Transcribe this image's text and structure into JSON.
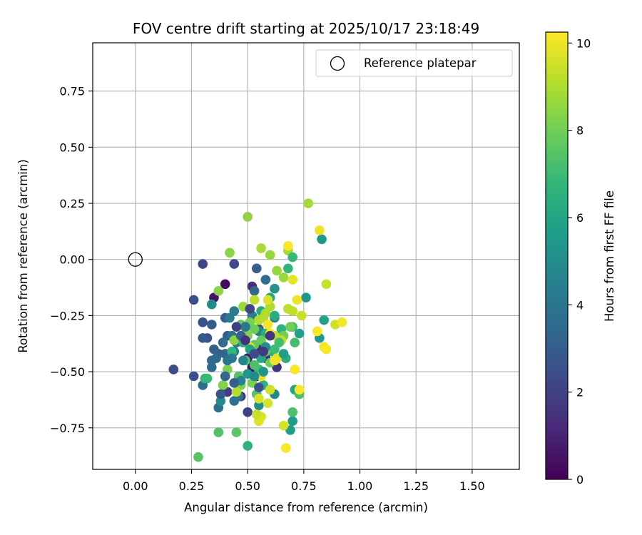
{
  "chart_data": {
    "type": "scatter",
    "title": "FOV centre drift starting at 2025/10/17 23:18:49",
    "xlabel": "Angular distance from reference (arcmin)",
    "ylabel": "Rotation from reference (arcmin)",
    "xlim": [
      -0.19,
      1.71
    ],
    "ylim": [
      -0.935,
      0.965
    ],
    "xticks": [
      "0.00",
      "0.25",
      "0.50",
      "0.75",
      "1.00",
      "1.25",
      "1.50"
    ],
    "xtick_values": [
      0,
      0.25,
      0.5,
      0.75,
      1.0,
      1.25,
      1.5
    ],
    "yticks": [
      "−0.75",
      "−0.50",
      "−0.25",
      "0.00",
      "0.25",
      "0.50",
      "0.75"
    ],
    "ytick_values": [
      -0.75,
      -0.5,
      -0.25,
      0,
      0.25,
      0.5,
      0.75
    ],
    "grid": true,
    "legend": {
      "label": "Reference platepar",
      "location": "upper right"
    },
    "reference": {
      "x": 0.0,
      "y": 0.0
    },
    "colorbar": {
      "label": "Hours from first FF file",
      "range": [
        0,
        10.25
      ],
      "ticks": [
        "0",
        "2",
        "4",
        "6",
        "8",
        "10"
      ],
      "tick_values": [
        0,
        2,
        4,
        6,
        8,
        10
      ],
      "colormap": "viridis",
      "stops": [
        "#440154",
        "#482878",
        "#3e4989",
        "#31688e",
        "#26828e",
        "#1f9e89",
        "#35b779",
        "#6ece58",
        "#b5de2b",
        "#fde725"
      ]
    },
    "series": [
      {
        "name": "FOV centre drift",
        "points": [
          [
            0.4,
            -0.11,
            0.3
          ],
          [
            0.35,
            -0.17,
            0.5
          ],
          [
            0.52,
            -0.48,
            0.4
          ],
          [
            0.54,
            -0.52,
            0.6
          ],
          [
            0.5,
            -0.44,
            0.8
          ],
          [
            0.55,
            -0.4,
            1.0
          ],
          [
            0.58,
            -0.44,
            1.2
          ],
          [
            0.52,
            -0.12,
            1.3
          ],
          [
            0.63,
            -0.48,
            1.5
          ],
          [
            0.47,
            -0.61,
            1.6
          ],
          [
            0.41,
            -0.59,
            1.8
          ],
          [
            0.5,
            -0.68,
            2.0
          ],
          [
            0.55,
            -0.31,
            2.1
          ],
          [
            0.3,
            -0.02,
            2.2
          ],
          [
            0.44,
            -0.02,
            2.3
          ],
          [
            0.17,
            -0.49,
            2.4
          ],
          [
            0.26,
            -0.52,
            2.5
          ],
          [
            0.26,
            -0.18,
            2.5
          ],
          [
            0.3,
            -0.28,
            2.6
          ],
          [
            0.32,
            -0.35,
            2.7
          ],
          [
            0.3,
            -0.35,
            2.8
          ],
          [
            0.34,
            -0.29,
            2.9
          ],
          [
            0.4,
            -0.26,
            3.0
          ],
          [
            0.41,
            -0.34,
            3.0
          ],
          [
            0.35,
            -0.4,
            3.1
          ],
          [
            0.37,
            -0.42,
            3.2
          ],
          [
            0.4,
            -0.42,
            3.3
          ],
          [
            0.34,
            -0.45,
            3.4
          ],
          [
            0.34,
            -0.48,
            3.5
          ],
          [
            0.36,
            -0.44,
            3.5
          ],
          [
            0.3,
            -0.56,
            3.6
          ],
          [
            0.37,
            -0.66,
            3.7
          ],
          [
            0.44,
            -0.63,
            3.8
          ],
          [
            0.46,
            -0.61,
            3.9
          ],
          [
            0.54,
            -0.04,
            3.0
          ],
          [
            0.53,
            -0.14,
            3.4
          ],
          [
            0.58,
            -0.09,
            3.7
          ],
          [
            0.43,
            -0.34,
            3.8
          ],
          [
            0.45,
            -0.37,
            4.0
          ],
          [
            0.44,
            -0.41,
            4.1
          ],
          [
            0.42,
            -0.26,
            4.2
          ],
          [
            0.44,
            -0.23,
            4.3
          ],
          [
            0.52,
            -0.25,
            4.4
          ],
          [
            0.55,
            -0.32,
            4.6
          ],
          [
            0.62,
            -0.26,
            4.7
          ],
          [
            0.62,
            -0.6,
            4.8
          ],
          [
            0.34,
            -0.2,
            4.9
          ],
          [
            0.38,
            -0.63,
            5.0
          ],
          [
            0.55,
            -0.65,
            5.1
          ],
          [
            0.62,
            -0.13,
            5.2
          ],
          [
            0.76,
            -0.17,
            5.3
          ],
          [
            0.83,
            0.09,
            5.4
          ],
          [
            0.82,
            -0.35,
            5.5
          ],
          [
            0.7,
            -0.72,
            5.6
          ],
          [
            0.69,
            -0.76,
            5.7
          ],
          [
            0.73,
            -0.33,
            5.8
          ],
          [
            0.84,
            -0.27,
            5.9
          ],
          [
            0.71,
            -0.58,
            6.0
          ],
          [
            0.6,
            -0.17,
            6.1
          ],
          [
            0.56,
            -0.23,
            6.2
          ],
          [
            0.58,
            -0.33,
            6.3
          ],
          [
            0.61,
            -0.41,
            6.4
          ],
          [
            0.67,
            -0.44,
            6.4
          ],
          [
            0.65,
            -0.31,
            6.5
          ],
          [
            0.57,
            -0.56,
            6.6
          ],
          [
            0.5,
            -0.83,
            6.6
          ],
          [
            0.43,
            -0.41,
            6.7
          ],
          [
            0.31,
            -0.53,
            6.8
          ],
          [
            0.32,
            -0.53,
            6.9
          ],
          [
            0.55,
            -0.49,
            7.0
          ],
          [
            0.62,
            -0.4,
            7.0
          ],
          [
            0.7,
            -0.3,
            7.1
          ],
          [
            0.71,
            -0.37,
            7.2
          ],
          [
            0.73,
            -0.6,
            7.2
          ],
          [
            0.7,
            -0.68,
            7.3
          ],
          [
            0.54,
            -0.6,
            7.4
          ],
          [
            0.37,
            -0.77,
            7.4
          ],
          [
            0.28,
            -0.88,
            7.5
          ],
          [
            0.45,
            -0.77,
            7.6
          ],
          [
            0.49,
            -0.45,
            7.6
          ],
          [
            0.53,
            -0.38,
            7.7
          ],
          [
            0.56,
            -0.36,
            7.8
          ],
          [
            0.58,
            -0.41,
            7.8
          ],
          [
            0.6,
            -0.46,
            7.9
          ],
          [
            0.66,
            -0.34,
            8.0
          ],
          [
            0.69,
            -0.3,
            8.0
          ],
          [
            0.52,
            -0.55,
            8.1
          ],
          [
            0.47,
            -0.56,
            8.2
          ],
          [
            0.41,
            -0.49,
            8.2
          ],
          [
            0.39,
            -0.56,
            8.3
          ],
          [
            0.37,
            -0.14,
            8.4
          ],
          [
            0.42,
            0.03,
            8.4
          ],
          [
            0.5,
            0.19,
            8.5
          ],
          [
            0.6,
            0.02,
            8.6
          ],
          [
            0.63,
            -0.05,
            8.6
          ],
          [
            0.66,
            -0.08,
            8.7
          ],
          [
            0.68,
            0.04,
            8.8
          ],
          [
            0.77,
            0.25,
            8.8
          ],
          [
            0.56,
            0.05,
            8.9
          ],
          [
            0.57,
            -0.26,
            9.0
          ],
          [
            0.6,
            -0.21,
            9.0
          ],
          [
            0.45,
            -0.59,
            9.1
          ],
          [
            0.53,
            -0.18,
            9.2
          ],
          [
            0.62,
            -0.34,
            9.2
          ],
          [
            0.65,
            -0.36,
            9.3
          ],
          [
            0.74,
            -0.25,
            9.4
          ],
          [
            0.85,
            -0.11,
            9.4
          ],
          [
            0.89,
            -0.29,
            9.5
          ],
          [
            0.66,
            -0.74,
            9.6
          ],
          [
            0.56,
            -0.7,
            9.7
          ],
          [
            0.59,
            -0.18,
            9.7
          ],
          [
            0.63,
            -0.44,
            9.8
          ],
          [
            0.55,
            -0.72,
            9.8
          ],
          [
            0.7,
            -0.09,
            9.9
          ],
          [
            0.72,
            -0.18,
            10.0
          ],
          [
            0.82,
            0.13,
            10.0
          ],
          [
            0.92,
            -0.28,
            10.1
          ],
          [
            0.84,
            -0.39,
            10.1
          ],
          [
            0.85,
            -0.4,
            10.2
          ],
          [
            0.81,
            -0.32,
            10.2
          ],
          [
            0.71,
            -0.49,
            10.2
          ],
          [
            0.73,
            -0.58,
            10.2
          ],
          [
            0.67,
            -0.84,
            10.2
          ],
          [
            0.68,
            0.06,
            10.2
          ],
          [
            0.59,
            -0.29,
            10.1
          ],
          [
            0.6,
            -0.33,
            10.0
          ],
          [
            0.62,
            -0.45,
            10.0
          ],
          [
            0.56,
            -0.52,
            9.9
          ],
          [
            0.51,
            -0.39,
            9.8
          ],
          [
            0.55,
            -0.62,
            9.7
          ],
          [
            0.59,
            -0.64,
            9.6
          ],
          [
            0.6,
            -0.58,
            9.5
          ],
          [
            0.54,
            -0.69,
            9.4
          ],
          [
            0.7,
            -0.23,
            9.3
          ],
          [
            0.68,
            -0.22,
            9.2
          ],
          [
            0.55,
            -0.27,
            9.1
          ],
          [
            0.58,
            -0.24,
            9.0
          ],
          [
            0.49,
            -0.31,
            8.9
          ],
          [
            0.48,
            -0.21,
            8.7
          ],
          [
            0.44,
            -0.36,
            8.5
          ],
          [
            0.5,
            -0.34,
            8.3
          ],
          [
            0.51,
            -0.28,
            8.1
          ],
          [
            0.53,
            -0.31,
            7.9
          ],
          [
            0.47,
            -0.29,
            7.7
          ],
          [
            0.46,
            -0.52,
            7.5
          ],
          [
            0.53,
            -0.47,
            7.3
          ],
          [
            0.64,
            -0.37,
            7.1
          ],
          [
            0.7,
            0.01,
            6.9
          ],
          [
            0.68,
            -0.04,
            6.7
          ],
          [
            0.48,
            -0.37,
            6.5
          ],
          [
            0.62,
            -0.25,
            6.3
          ],
          [
            0.56,
            -0.44,
            6.1
          ],
          [
            0.51,
            -0.4,
            5.9
          ],
          [
            0.66,
            -0.42,
            5.7
          ],
          [
            0.5,
            -0.51,
            5.5
          ],
          [
            0.57,
            -0.5,
            5.3
          ],
          [
            0.58,
            -0.39,
            5.1
          ],
          [
            0.53,
            -0.52,
            4.9
          ],
          [
            0.48,
            -0.45,
            4.7
          ],
          [
            0.47,
            -0.54,
            4.5
          ],
          [
            0.43,
            -0.44,
            4.3
          ],
          [
            0.49,
            -0.3,
            4.1
          ],
          [
            0.41,
            -0.45,
            3.9
          ],
          [
            0.39,
            -0.37,
            3.6
          ],
          [
            0.4,
            -0.52,
            3.4
          ],
          [
            0.47,
            -0.34,
            3.2
          ],
          [
            0.44,
            -0.55,
            3.0
          ],
          [
            0.38,
            -0.6,
            2.8
          ],
          [
            0.55,
            -0.57,
            2.6
          ],
          [
            0.53,
            -0.42,
            2.4
          ],
          [
            0.51,
            -0.22,
            2.2
          ],
          [
            0.45,
            -0.3,
            2.0
          ],
          [
            0.57,
            -0.41,
            1.8
          ],
          [
            0.6,
            -0.34,
            1.6
          ],
          [
            0.49,
            -0.36,
            1.4
          ]
        ]
      }
    ]
  }
}
